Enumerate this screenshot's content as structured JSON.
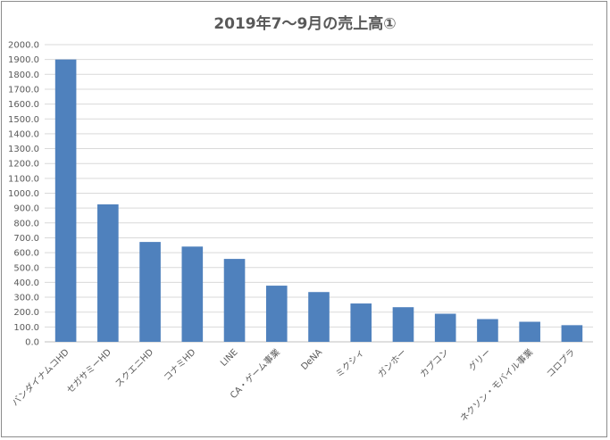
{
  "chart_data": {
    "type": "bar",
    "title": "2019年7〜9月の売上高①",
    "xlabel": "",
    "ylabel": "",
    "ylim": [
      0,
      2000
    ],
    "ytick_step": 100,
    "ytick_labels": [
      "0.0",
      "100.0",
      "200.0",
      "300.0",
      "400.0",
      "500.0",
      "600.0",
      "700.0",
      "800.0",
      "900.0",
      "1000.0",
      "1100.0",
      "1200.0",
      "1300.0",
      "1400.0",
      "1500.0",
      "1600.0",
      "1700.0",
      "1800.0",
      "1900.0",
      "2000.0"
    ],
    "grid": true,
    "legend": "none",
    "bar_color": "#4f81bd",
    "categories": [
      "バンダイナムコHD",
      "セガサミーHD",
      "スクエニHD",
      "コナミHD",
      "LINE",
      "CA・ゲーム事業",
      "DeNA",
      "ミクシィ",
      "ガンホー",
      "カプコン",
      "グリー",
      "ネクソン・モバイル事業",
      "コロプラ"
    ],
    "values": [
      1900,
      925,
      672,
      641,
      558,
      378,
      335,
      258,
      233,
      189,
      153,
      135,
      112
    ]
  }
}
